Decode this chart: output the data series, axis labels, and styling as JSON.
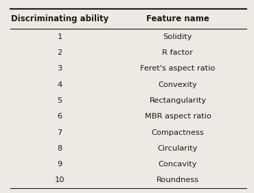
{
  "col1_header": "Discriminating ability",
  "col2_header": "Feature name",
  "rows": [
    [
      "1",
      "Solidity"
    ],
    [
      "2",
      "R factor"
    ],
    [
      "3",
      "Feret's aspect ratio"
    ],
    [
      "4",
      "Convexity"
    ],
    [
      "5",
      "Rectangularity"
    ],
    [
      "6",
      "MBR aspect ratio"
    ],
    [
      "7",
      "Compactness"
    ],
    [
      "8",
      "Circularity"
    ],
    [
      "9",
      "Concavity"
    ],
    [
      "10",
      "Roundness"
    ]
  ],
  "bg_color": "#ede9e3",
  "text_color": "#1a1a1a",
  "header_fontsize": 8.5,
  "row_fontsize": 8.2,
  "fig_width": 3.7,
  "fig_height": 2.82
}
